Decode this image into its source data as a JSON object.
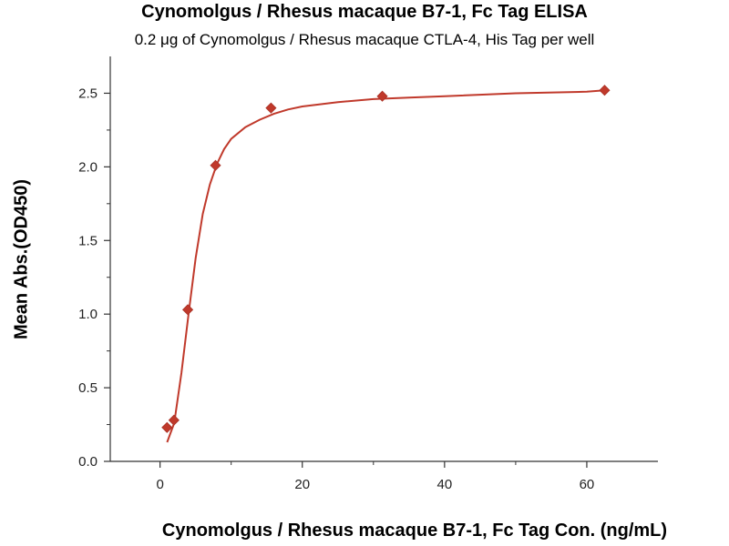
{
  "chart_data": {
    "type": "scatter",
    "title": "Cynomolgus / Rhesus macaque B7-1, Fc Tag ELISA",
    "subtitle": "0.2 μg of Cynomolgus / Rhesus macaque CTLA-4, His Tag per well",
    "xlabel": "Cynomolgus / Rhesus macaque B7-1, Fc Tag Con. (ng/mL)",
    "ylabel": "Mean Abs.(OD450)",
    "xlim": [
      -7,
      70
    ],
    "ylim": [
      0,
      2.75
    ],
    "x_ticks": [
      0,
      20,
      40,
      60
    ],
    "y_ticks": [
      0.0,
      0.5,
      1.0,
      1.5,
      2.0,
      2.5
    ],
    "x_tick_labels": [
      "0",
      "20",
      "40",
      "60"
    ],
    "y_tick_labels": [
      "0.0",
      "0.5",
      "1.0",
      "1.5",
      "2.0",
      "2.5"
    ],
    "grid": false,
    "color": "#c0392b",
    "series": [
      {
        "x": [
          0.98,
          1.95,
          3.9,
          7.8,
          15.6,
          31.25,
          62.5
        ],
        "y": [
          0.23,
          0.28,
          1.03,
          2.01,
          2.4,
          2.48,
          2.52
        ]
      }
    ],
    "fit_curve": {
      "x": [
        1,
        2,
        3,
        4,
        5,
        6,
        7,
        8,
        9,
        10,
        12,
        14,
        16,
        18,
        20,
        25,
        30,
        35,
        40,
        50,
        60,
        62.5
      ],
      "y": [
        0.13,
        0.26,
        0.6,
        1.0,
        1.38,
        1.68,
        1.88,
        2.02,
        2.12,
        2.19,
        2.27,
        2.32,
        2.36,
        2.39,
        2.41,
        2.44,
        2.46,
        2.47,
        2.48,
        2.5,
        2.51,
        2.52
      ]
    }
  }
}
